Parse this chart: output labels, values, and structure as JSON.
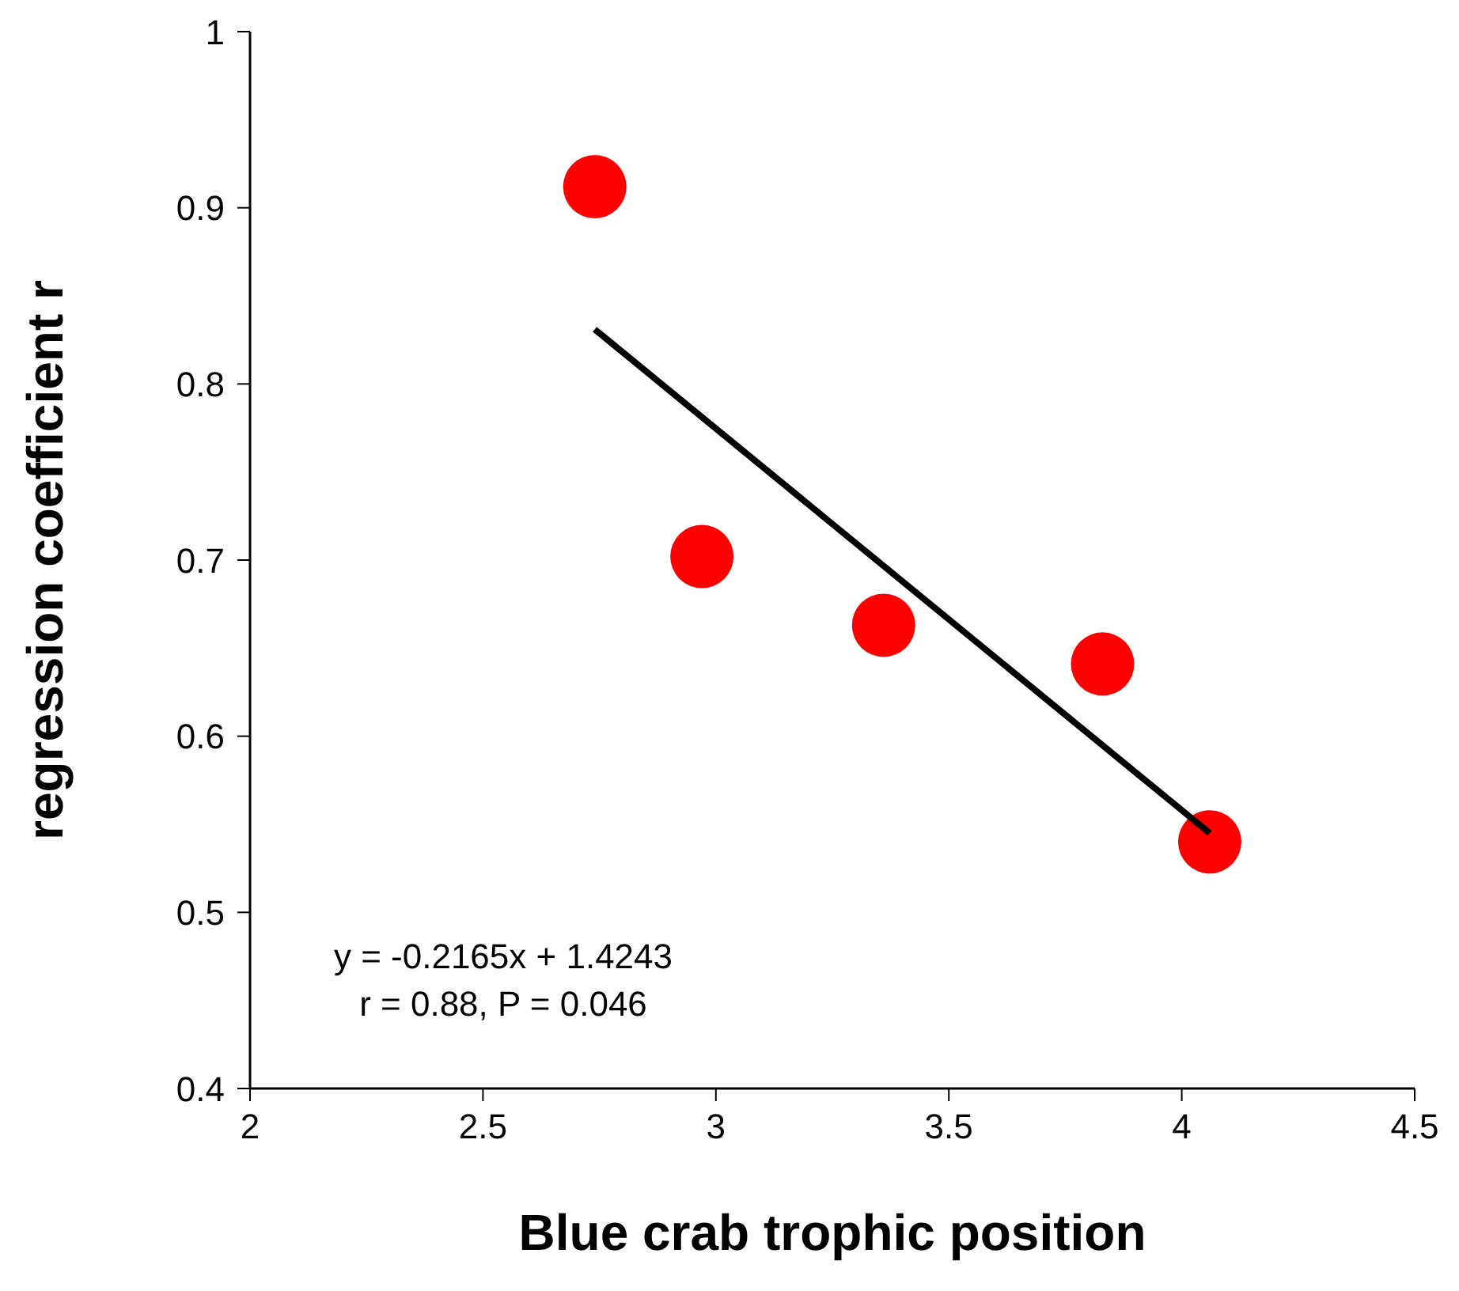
{
  "chart_data": {
    "type": "scatter",
    "xlabel": "Blue crab trophic position",
    "ylabel": "regression coefficient r",
    "xlim": [
      2,
      4.5
    ],
    "xticks": [
      2,
      2.5,
      3,
      3.5,
      4,
      4.5
    ],
    "ylim": [
      0.4,
      1
    ],
    "yticks": [
      0.4,
      0.5,
      0.6,
      0.7,
      0.8,
      0.9,
      1
    ],
    "annotations": [
      "y = -0.2165x + 1.4243",
      "r = 0.88, P = 0.046"
    ],
    "series": [
      {
        "color": "#ff0000",
        "marker": "circle",
        "x": [
          2.74,
          2.97,
          3.36,
          3.83,
          4.06
        ],
        "values": [
          0.912,
          0.702,
          0.663,
          0.641,
          0.54
        ]
      },
      {
        "type": "line",
        "marker": "none",
        "color": "#000000",
        "x": [
          2.74,
          4.06
        ],
        "values": [
          0.831,
          0.545
        ]
      }
    ]
  }
}
